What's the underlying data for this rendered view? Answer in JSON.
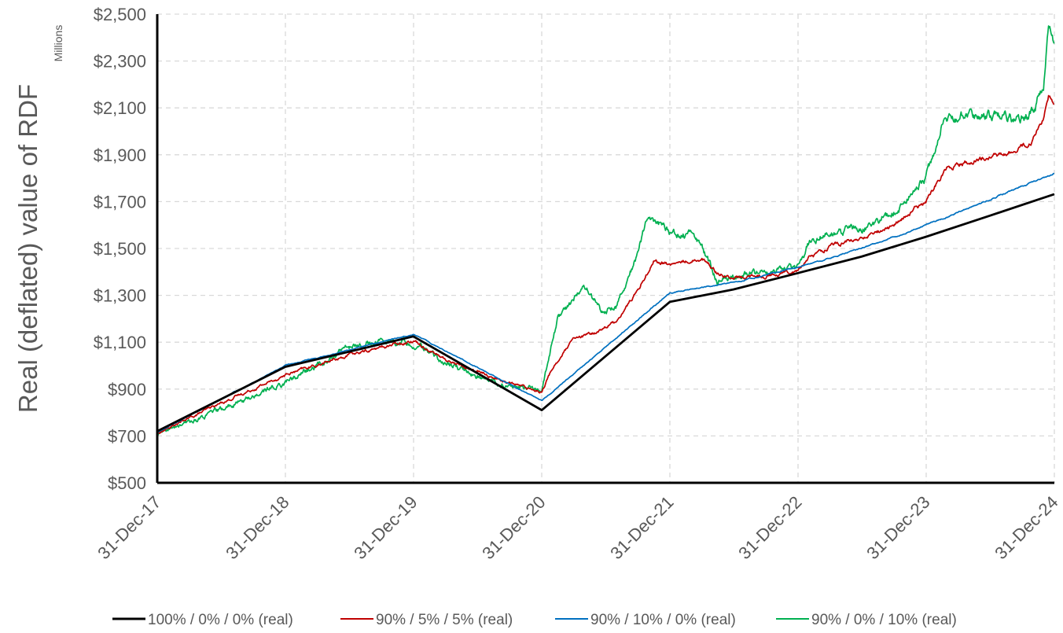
{
  "chart_data": {
    "type": "line",
    "ylabel": "Real (deflated) value of RDF",
    "yunits": "Millions",
    "ylim": [
      500,
      2500
    ],
    "yticks": [
      500,
      700,
      900,
      1100,
      1300,
      1500,
      1700,
      1900,
      2100,
      2300,
      2500
    ],
    "ytick_labels": [
      "$500",
      "$700",
      "$900",
      "$1,100",
      "$1,300",
      "$1,500",
      "$1,700",
      "$1,900",
      "$2,100",
      "$2,300",
      "$2,500"
    ],
    "xticks": [
      "31-Dec-17",
      "31-Dec-18",
      "31-Dec-19",
      "31-Dec-20",
      "31-Dec-21",
      "31-Dec-22",
      "31-Dec-23",
      "31-Dec-24"
    ],
    "grid": true,
    "legend_position": "bottom",
    "series": [
      {
        "name": "100% / 0% / 0% (real)",
        "color": "#000000",
        "noise": 0,
        "x": [
          "2017-12-31",
          "2018-12-31",
          "2019-12-31",
          "2020-12-31",
          "2021-12-31",
          "2022-06-30",
          "2022-12-31",
          "2023-06-30",
          "2023-12-31",
          "2024-06-30",
          "2024-12-31"
        ],
        "y": [
          720,
          995,
          1125,
          810,
          1272,
          1325,
          1395,
          1465,
          1550,
          1640,
          1732
        ]
      },
      {
        "name": "90% / 5% / 5% (real)",
        "color": "#c00000",
        "noise": 5,
        "x": [
          "2017-12-31",
          "2018-06-30",
          "2018-12-31",
          "2019-06-30",
          "2019-12-31",
          "2020-03-31",
          "2020-06-30",
          "2020-09-30",
          "2020-12-31",
          "2021-01-31",
          "2021-03-31",
          "2021-05-31",
          "2021-07-31",
          "2021-09-30",
          "2021-11-15",
          "2021-12-31",
          "2022-03-31",
          "2022-05-15",
          "2022-06-30",
          "2022-09-30",
          "2022-12-31",
          "2023-01-31",
          "2023-03-31",
          "2023-06-30",
          "2023-09-30",
          "2023-12-31",
          "2024-02-28",
          "2024-04-30",
          "2024-06-30",
          "2024-08-31",
          "2024-10-31",
          "2024-11-30",
          "2024-12-15",
          "2024-12-31"
        ],
        "y": [
          710,
          840,
          960,
          1045,
          1110,
          1025,
          975,
          925,
          890,
          990,
          1110,
          1140,
          1190,
          1320,
          1450,
          1430,
          1460,
          1400,
          1370,
          1385,
          1410,
          1460,
          1510,
          1540,
          1600,
          1700,
          1850,
          1870,
          1890,
          1910,
          1960,
          2060,
          2150,
          2105
        ]
      },
      {
        "name": "90% / 10% / 0% (real)",
        "color": "#0070c0",
        "noise": 1.5,
        "x": [
          "2017-12-31",
          "2018-12-31",
          "2019-12-31",
          "2020-12-31",
          "2021-12-31",
          "2022-06-30",
          "2022-12-31",
          "2023-06-30",
          "2023-12-31",
          "2024-06-30",
          "2024-12-31"
        ],
        "y": [
          715,
          1000,
          1135,
          850,
          1310,
          1355,
          1420,
          1500,
          1600,
          1710,
          1820
        ]
      },
      {
        "name": "90% / 0% / 10% (real)",
        "color": "#00b050",
        "noise": 10,
        "x": [
          "2017-12-31",
          "2018-06-30",
          "2018-12-31",
          "2019-03-31",
          "2019-06-30",
          "2019-09-30",
          "2019-12-31",
          "2020-03-31",
          "2020-06-30",
          "2020-09-30",
          "2020-12-31",
          "2021-02-15",
          "2021-04-30",
          "2021-06-15",
          "2021-07-31",
          "2021-09-30",
          "2021-11-01",
          "2021-12-31",
          "2022-03-15",
          "2022-05-15",
          "2022-06-30",
          "2022-09-30",
          "2022-12-31",
          "2023-01-31",
          "2023-03-31",
          "2023-06-30",
          "2023-09-30",
          "2023-12-31",
          "2024-02-15",
          "2024-04-30",
          "2024-06-30",
          "2024-08-31",
          "2024-10-31",
          "2024-11-30",
          "2024-12-15",
          "2024-12-31"
        ],
        "y": [
          705,
          810,
          930,
          1000,
          1080,
          1100,
          1100,
          1010,
          955,
          905,
          900,
          1200,
          1340,
          1240,
          1260,
          1480,
          1650,
          1560,
          1560,
          1360,
          1380,
          1390,
          1420,
          1530,
          1560,
          1580,
          1660,
          1790,
          2050,
          2070,
          2060,
          2050,
          2080,
          2200,
          2480,
          2400
        ]
      }
    ]
  }
}
